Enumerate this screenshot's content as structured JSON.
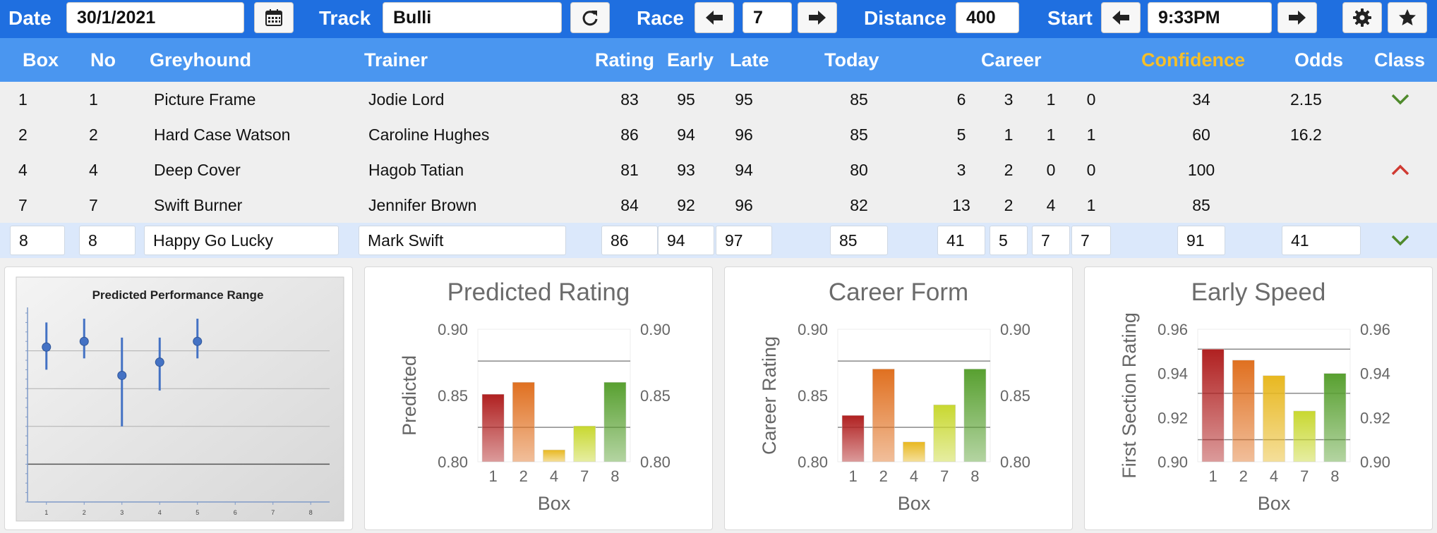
{
  "toolbar": {
    "date_label": "Date",
    "date_value": "30/1/2021",
    "track_label": "Track",
    "track_value": "Bulli",
    "race_label": "Race",
    "race_value": "7",
    "distance_label": "Distance",
    "distance_value": "400",
    "start_label": "Start",
    "start_value": "9:33PM",
    "icons": [
      "calendar-icon",
      "refresh-icon",
      "arrow-left-icon",
      "arrow-right-icon",
      "gear-icon",
      "star-icon"
    ]
  },
  "columns": {
    "box": "Box",
    "no": "No",
    "greyhound": "Greyhound",
    "trainer": "Trainer",
    "rating": "Rating",
    "early": "Early",
    "late": "Late",
    "today": "Today",
    "career": "Career",
    "confidence": "Confidence",
    "odds": "Odds",
    "class": "Class"
  },
  "colors": {
    "topbar": "#1f6fe0",
    "header": "#4a96f0",
    "confidence_header": "#f5bf2a",
    "class_up": "#d03a32",
    "class_down": "#4f8a2c",
    "selected_row": "#dbe8fb"
  },
  "rows": [
    {
      "box": "1",
      "no": "1",
      "greyhound": "Picture Frame",
      "trainer": "Jodie Lord",
      "rating": "83",
      "early": "95",
      "late": "95",
      "today": "85",
      "c1": "6",
      "c2": "3",
      "c3": "1",
      "c4": "0",
      "confidence": "34",
      "odds": "2.15",
      "class": "down"
    },
    {
      "box": "2",
      "no": "2",
      "greyhound": "Hard Case Watson",
      "trainer": "Caroline Hughes",
      "rating": "86",
      "early": "94",
      "late": "96",
      "today": "85",
      "c1": "5",
      "c2": "1",
      "c3": "1",
      "c4": "1",
      "confidence": "60",
      "odds": "16.2",
      "class": "none"
    },
    {
      "box": "4",
      "no": "4",
      "greyhound": "Deep Cover",
      "trainer": "Hagob Tatian",
      "rating": "81",
      "early": "93",
      "late": "94",
      "today": "80",
      "c1": "3",
      "c2": "2",
      "c3": "0",
      "c4": "0",
      "confidence": "100",
      "odds": "",
      "class": "up"
    },
    {
      "box": "7",
      "no": "7",
      "greyhound": "Swift Burner",
      "trainer": "Jennifer Brown",
      "rating": "84",
      "early": "92",
      "late": "96",
      "today": "82",
      "c1": "13",
      "c2": "2",
      "c3": "4",
      "c4": "1",
      "confidence": "85",
      "odds": "",
      "class": "none"
    },
    {
      "box": "8",
      "no": "8",
      "greyhound": "Happy Go Lucky",
      "trainer": "Mark Swift",
      "rating": "86",
      "early": "94",
      "late": "97",
      "today": "85",
      "c1": "41",
      "c2": "5",
      "c3": "7",
      "c4": "7",
      "confidence": "91",
      "odds": "41",
      "class": "down",
      "selected": true
    }
  ],
  "chart_data": [
    {
      "type": "scatter",
      "title": "Predicted Performance Range",
      "x": [
        1,
        2,
        3,
        4,
        5
      ],
      "y": [
        0.82,
        0.85,
        0.67,
        0.74,
        0.85
      ],
      "y_low": [
        0.7,
        0.76,
        0.4,
        0.59,
        0.76
      ],
      "y_high": [
        0.95,
        0.97,
        0.87,
        0.87,
        0.97
      ],
      "xticks": [
        "1",
        "2",
        "3",
        "4",
        "5",
        "6",
        "7",
        "8"
      ],
      "xlim": [
        0.5,
        8.5
      ],
      "ylim": [
        0,
        1.0
      ],
      "gridlines": [
        0.2,
        0.4,
        0.6,
        0.8
      ],
      "point_color": "#4472c4"
    },
    {
      "type": "bar",
      "title": "Predicted Rating",
      "ylabel": "Predicted",
      "xlabel": "Box",
      "categories": [
        "1",
        "2",
        "4",
        "7",
        "8"
      ],
      "values": [
        0.851,
        0.86,
        0.809,
        0.827,
        0.86
      ],
      "ylim": [
        0.8,
        0.9
      ],
      "yticks": [
        "0.80",
        "0.85",
        "0.90"
      ],
      "reference_lines": [
        0.876,
        0.826
      ],
      "colors": [
        "#b02020",
        "#e07020",
        "#e8b820",
        "#c8d830",
        "#58a030"
      ]
    },
    {
      "type": "bar",
      "title": "Career Form",
      "ylabel": "Career Rating",
      "xlabel": "Box",
      "categories": [
        "1",
        "2",
        "4",
        "7",
        "8"
      ],
      "values": [
        0.835,
        0.87,
        0.815,
        0.843,
        0.87
      ],
      "ylim": [
        0.8,
        0.9
      ],
      "yticks": [
        "0.80",
        "0.85",
        "0.90"
      ],
      "reference_lines": [
        0.876,
        0.826
      ],
      "colors": [
        "#b02020",
        "#e07020",
        "#e8b820",
        "#c8d830",
        "#58a030"
      ]
    },
    {
      "type": "bar",
      "title": "Early Speed",
      "ylabel": "First Section Rating",
      "xlabel": "Box",
      "categories": [
        "1",
        "2",
        "4",
        "7",
        "8"
      ],
      "values": [
        0.951,
        0.946,
        0.939,
        0.923,
        0.94
      ],
      "ylim": [
        0.9,
        0.96
      ],
      "yticks": [
        "0.90",
        "0.92",
        "0.94",
        "0.96"
      ],
      "reference_lines": [
        0.951,
        0.931,
        0.91
      ],
      "colors": [
        "#b02020",
        "#e07020",
        "#e8b820",
        "#c8d830",
        "#58a030"
      ]
    }
  ]
}
